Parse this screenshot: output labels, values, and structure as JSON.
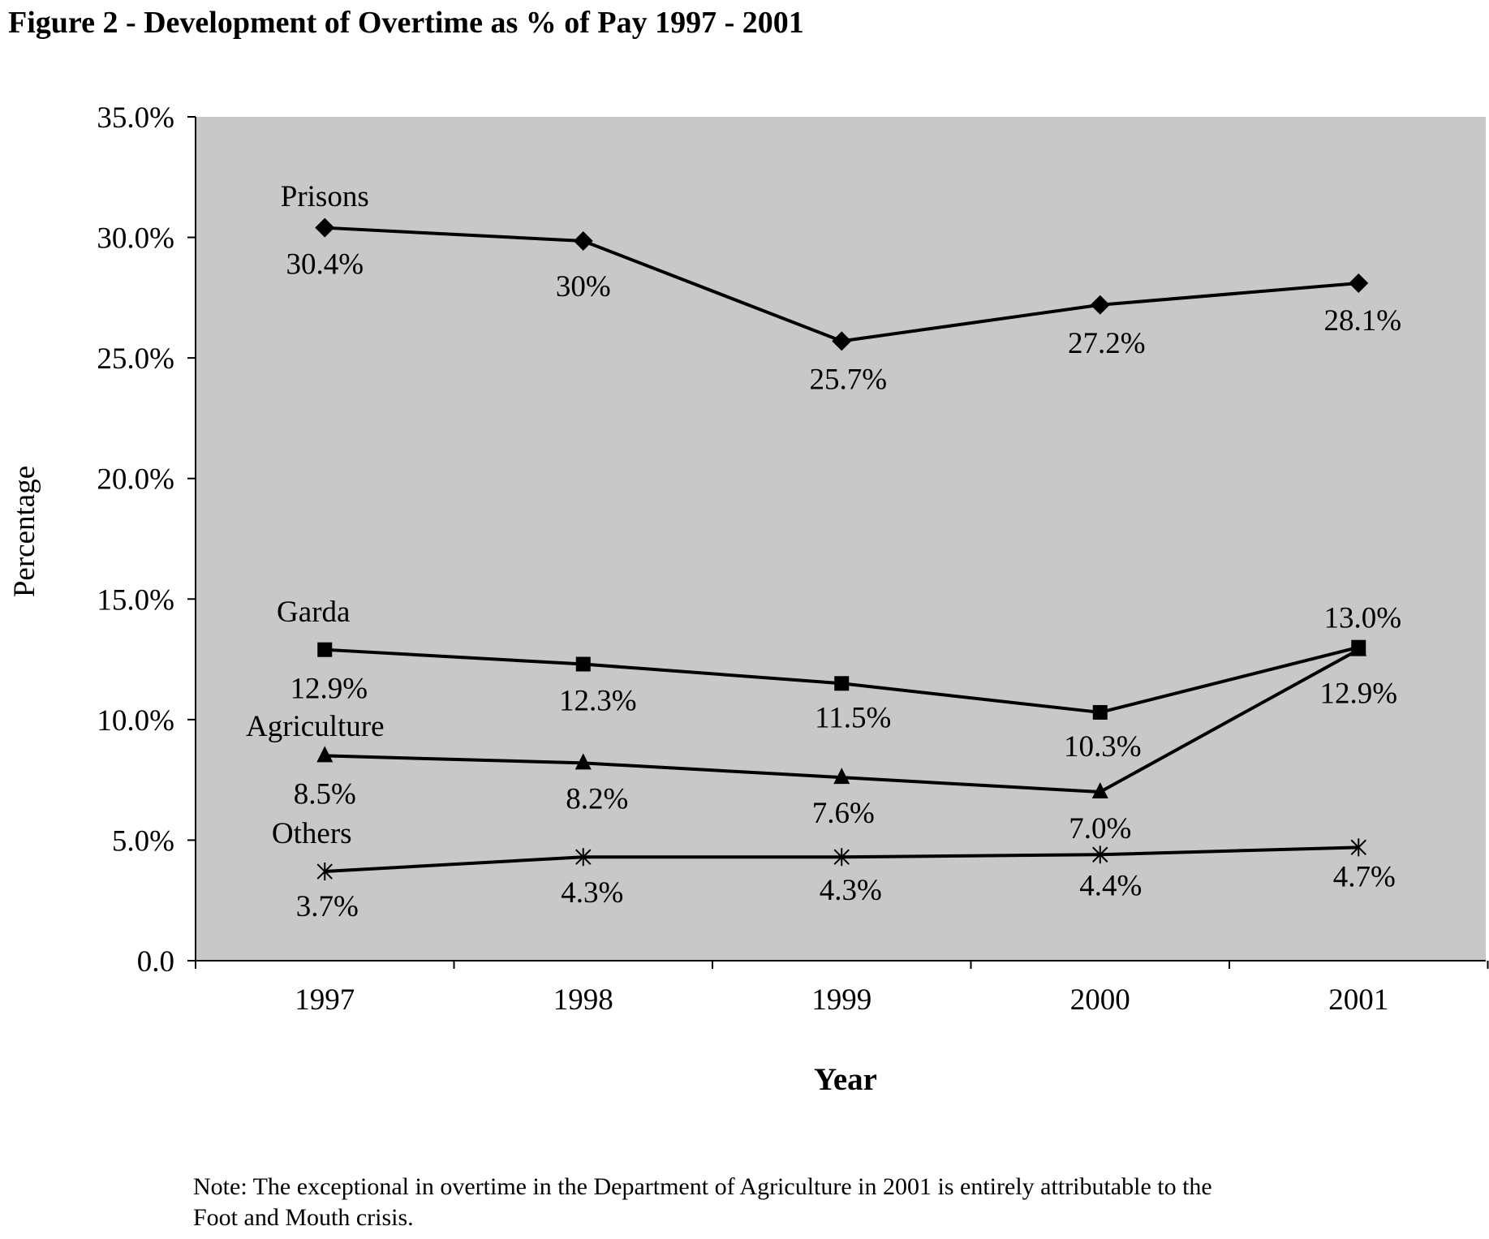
{
  "figure_title": "Figure 2 - Development of Overtime as % of Pay 1997 - 2001",
  "note_lines": [
    "Note: The exceptional in overtime in the Department of Agriculture in 2001 is entirely attributable to the",
    "Foot and Mouth crisis."
  ],
  "colors": {
    "plot_background": "#c8c8c8",
    "line": "#000000"
  },
  "chart_data": {
    "type": "line",
    "title": "Figure 2 - Development of Overtime as % of Pay 1997 - 2001",
    "xlabel": "Year",
    "ylabel": "Percentage",
    "categories": [
      "1997",
      "1998",
      "1999",
      "2000",
      "2001"
    ],
    "ylim": [
      0,
      35
    ],
    "yticks": [
      0,
      5,
      10,
      15,
      20,
      25,
      30,
      35
    ],
    "ytick_labels": [
      "0.0",
      "5.0%",
      "10.0%",
      "15.0%",
      "20.0%",
      "25.0%",
      "30.0%",
      "35.0%"
    ],
    "grid": false,
    "legend": "none",
    "series": [
      {
        "name": "Prisons",
        "marker": "diamond",
        "values": [
          30.4,
          29.85,
          25.7,
          27.2,
          28.1
        ],
        "labels": [
          "30.4%",
          "30%",
          "25.7%",
          "27.2%",
          "28.1%"
        ]
      },
      {
        "name": "Garda",
        "marker": "square",
        "values": [
          12.9,
          12.3,
          11.5,
          10.3,
          13.0
        ],
        "labels": [
          "12.9%",
          "12.3%",
          "11.5%",
          "10.3%",
          "13.0%"
        ]
      },
      {
        "name": "Agriculture",
        "marker": "triangle",
        "values": [
          8.5,
          8.2,
          7.6,
          7.0,
          12.9
        ],
        "labels": [
          "8.5%",
          "8.2%",
          "7.6%",
          "7.0%",
          "12.9%"
        ]
      },
      {
        "name": "Others",
        "marker": "star",
        "values": [
          3.7,
          4.3,
          4.3,
          4.4,
          4.7
        ],
        "labels": [
          "3.7%",
          "4.3%",
          "4.3%",
          "4.4%",
          "4.7%"
        ]
      }
    ]
  }
}
